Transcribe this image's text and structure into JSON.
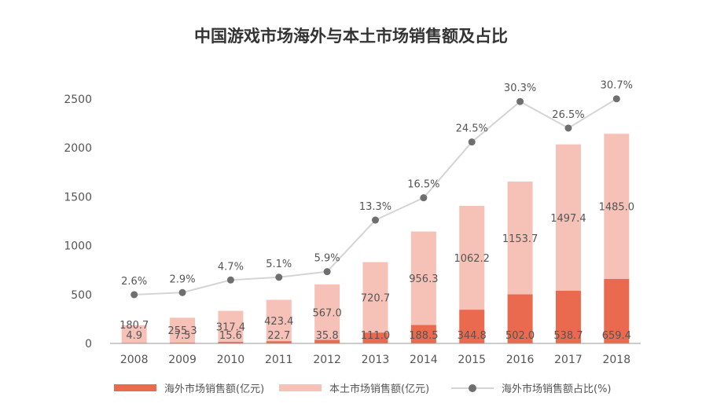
{
  "colors": {
    "overseas": "#e96a4f",
    "domestic": "#f6c2b8",
    "ratio_line": "#d4d4d4",
    "ratio_marker": "#6f6f6f",
    "text": "#555555",
    "title": "#333333"
  },
  "chart_data": {
    "type": "bar",
    "stacked": true,
    "title": "中国游戏市场海外与本土市场销售额及占比",
    "categories": [
      "2008",
      "2009",
      "2010",
      "2011",
      "2012",
      "2013",
      "2014",
      "2015",
      "2016",
      "2017",
      "2018"
    ],
    "ylim": [
      0,
      2500
    ],
    "yticks": [
      0,
      500,
      1000,
      1500,
      2000,
      2500
    ],
    "series": [
      {
        "name": "海外市场销售额(亿元)",
        "type": "bar",
        "values": [
          4.9,
          7.5,
          15.6,
          22.7,
          35.8,
          111.0,
          188.5,
          344.8,
          502.0,
          538.7,
          659.4
        ],
        "labels": [
          "4.9",
          "7.5",
          "15.6",
          "22.7",
          "35.8",
          "111.0",
          "188.5",
          "344.8",
          "502.0",
          "538.7",
          "659.4"
        ]
      },
      {
        "name": "本土市场销售额(亿元)",
        "type": "bar",
        "values": [
          180.7,
          255.3,
          317.4,
          423.4,
          567.0,
          720.7,
          956.3,
          1062.2,
          1153.7,
          1497.4,
          1485.0
        ],
        "labels": [
          "180.7",
          "255.3",
          "317.4",
          "423.4",
          "567.0",
          "720.7",
          "956.3",
          "1062.2",
          "1153.7",
          "1497.4",
          "1485.0"
        ]
      },
      {
        "name": "海外市场销售额占比(%)",
        "type": "line",
        "values": [
          2.6,
          2.9,
          4.7,
          5.1,
          5.9,
          13.3,
          16.5,
          24.5,
          30.3,
          26.5,
          30.7
        ],
        "labels": [
          "2.6%",
          "2.9%",
          "4.7%",
          "5.1%",
          "5.9%",
          "13.3%",
          "16.5%",
          "24.5%",
          "30.3%",
          "26.5%",
          "30.7%"
        ]
      }
    ],
    "legend": [
      "海外市场销售额(亿元)",
      "本土市场销售额(亿元)",
      "海外市场销售额占比(%)"
    ],
    "legend_position": "bottom"
  }
}
